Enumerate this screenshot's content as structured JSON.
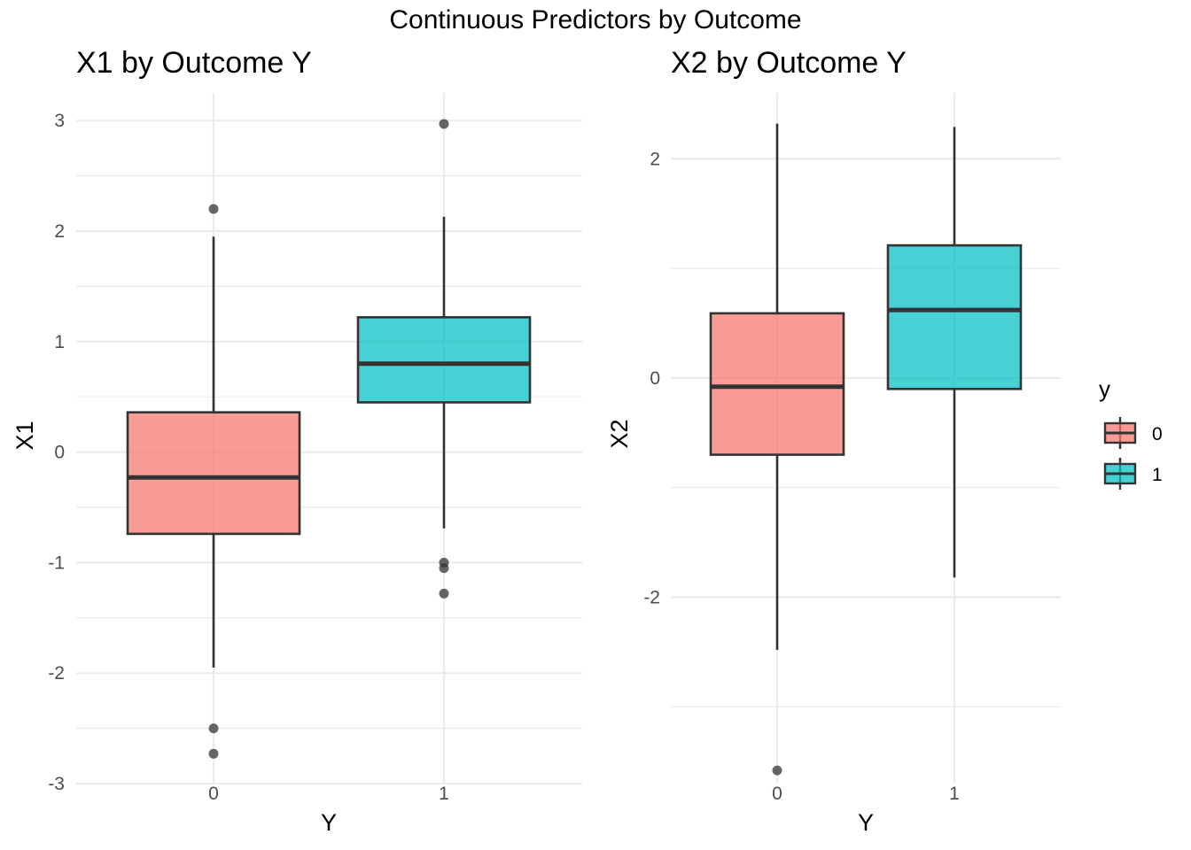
{
  "figure": {
    "title": "Continuous Predictors by Outcome"
  },
  "chart_data": [
    {
      "type": "box",
      "title": "X1 by Outcome Y",
      "xlabel": "Y",
      "ylabel": "X1",
      "categories": [
        "0",
        "1"
      ],
      "ylim": [
        -3.0,
        3.25
      ],
      "yticks": [
        -3,
        -2,
        -1,
        0,
        1,
        2,
        3
      ],
      "grid": true,
      "boxes": [
        {
          "group": "0",
          "whisker_low": -1.95,
          "q1": -0.74,
          "median": -0.23,
          "q3": 0.36,
          "whisker_high": 1.95,
          "outliers": [
            2.2,
            -2.5,
            -2.73
          ],
          "color": "#F8766D"
        },
        {
          "group": "1",
          "whisker_low": -0.69,
          "q1": 0.45,
          "median": 0.8,
          "q3": 1.22,
          "whisker_high": 2.13,
          "outliers": [
            2.97,
            -1.0,
            -1.05,
            -1.28
          ],
          "color": "#00BFC4"
        }
      ]
    },
    {
      "type": "box",
      "title": "X2 by Outcome Y",
      "xlabel": "Y",
      "ylabel": "X2",
      "categories": [
        "0",
        "1"
      ],
      "ylim": [
        -3.7,
        2.6
      ],
      "yticks": [
        -2,
        0,
        2
      ],
      "grid": true,
      "boxes": [
        {
          "group": "0",
          "whisker_low": -2.48,
          "q1": -0.7,
          "median": -0.08,
          "q3": 0.59,
          "whisker_high": 2.32,
          "outliers": [
            -3.58
          ],
          "color": "#F8766D"
        },
        {
          "group": "1",
          "whisker_low": -1.82,
          "q1": -0.1,
          "median": 0.62,
          "q3": 1.21,
          "whisker_high": 2.29,
          "outliers": [],
          "color": "#00BFC4"
        }
      ]
    }
  ],
  "legend": {
    "title": "y",
    "position": "right",
    "items": [
      {
        "label": "0",
        "color": "#F8766D"
      },
      {
        "label": "1",
        "color": "#00BFC4"
      }
    ]
  }
}
